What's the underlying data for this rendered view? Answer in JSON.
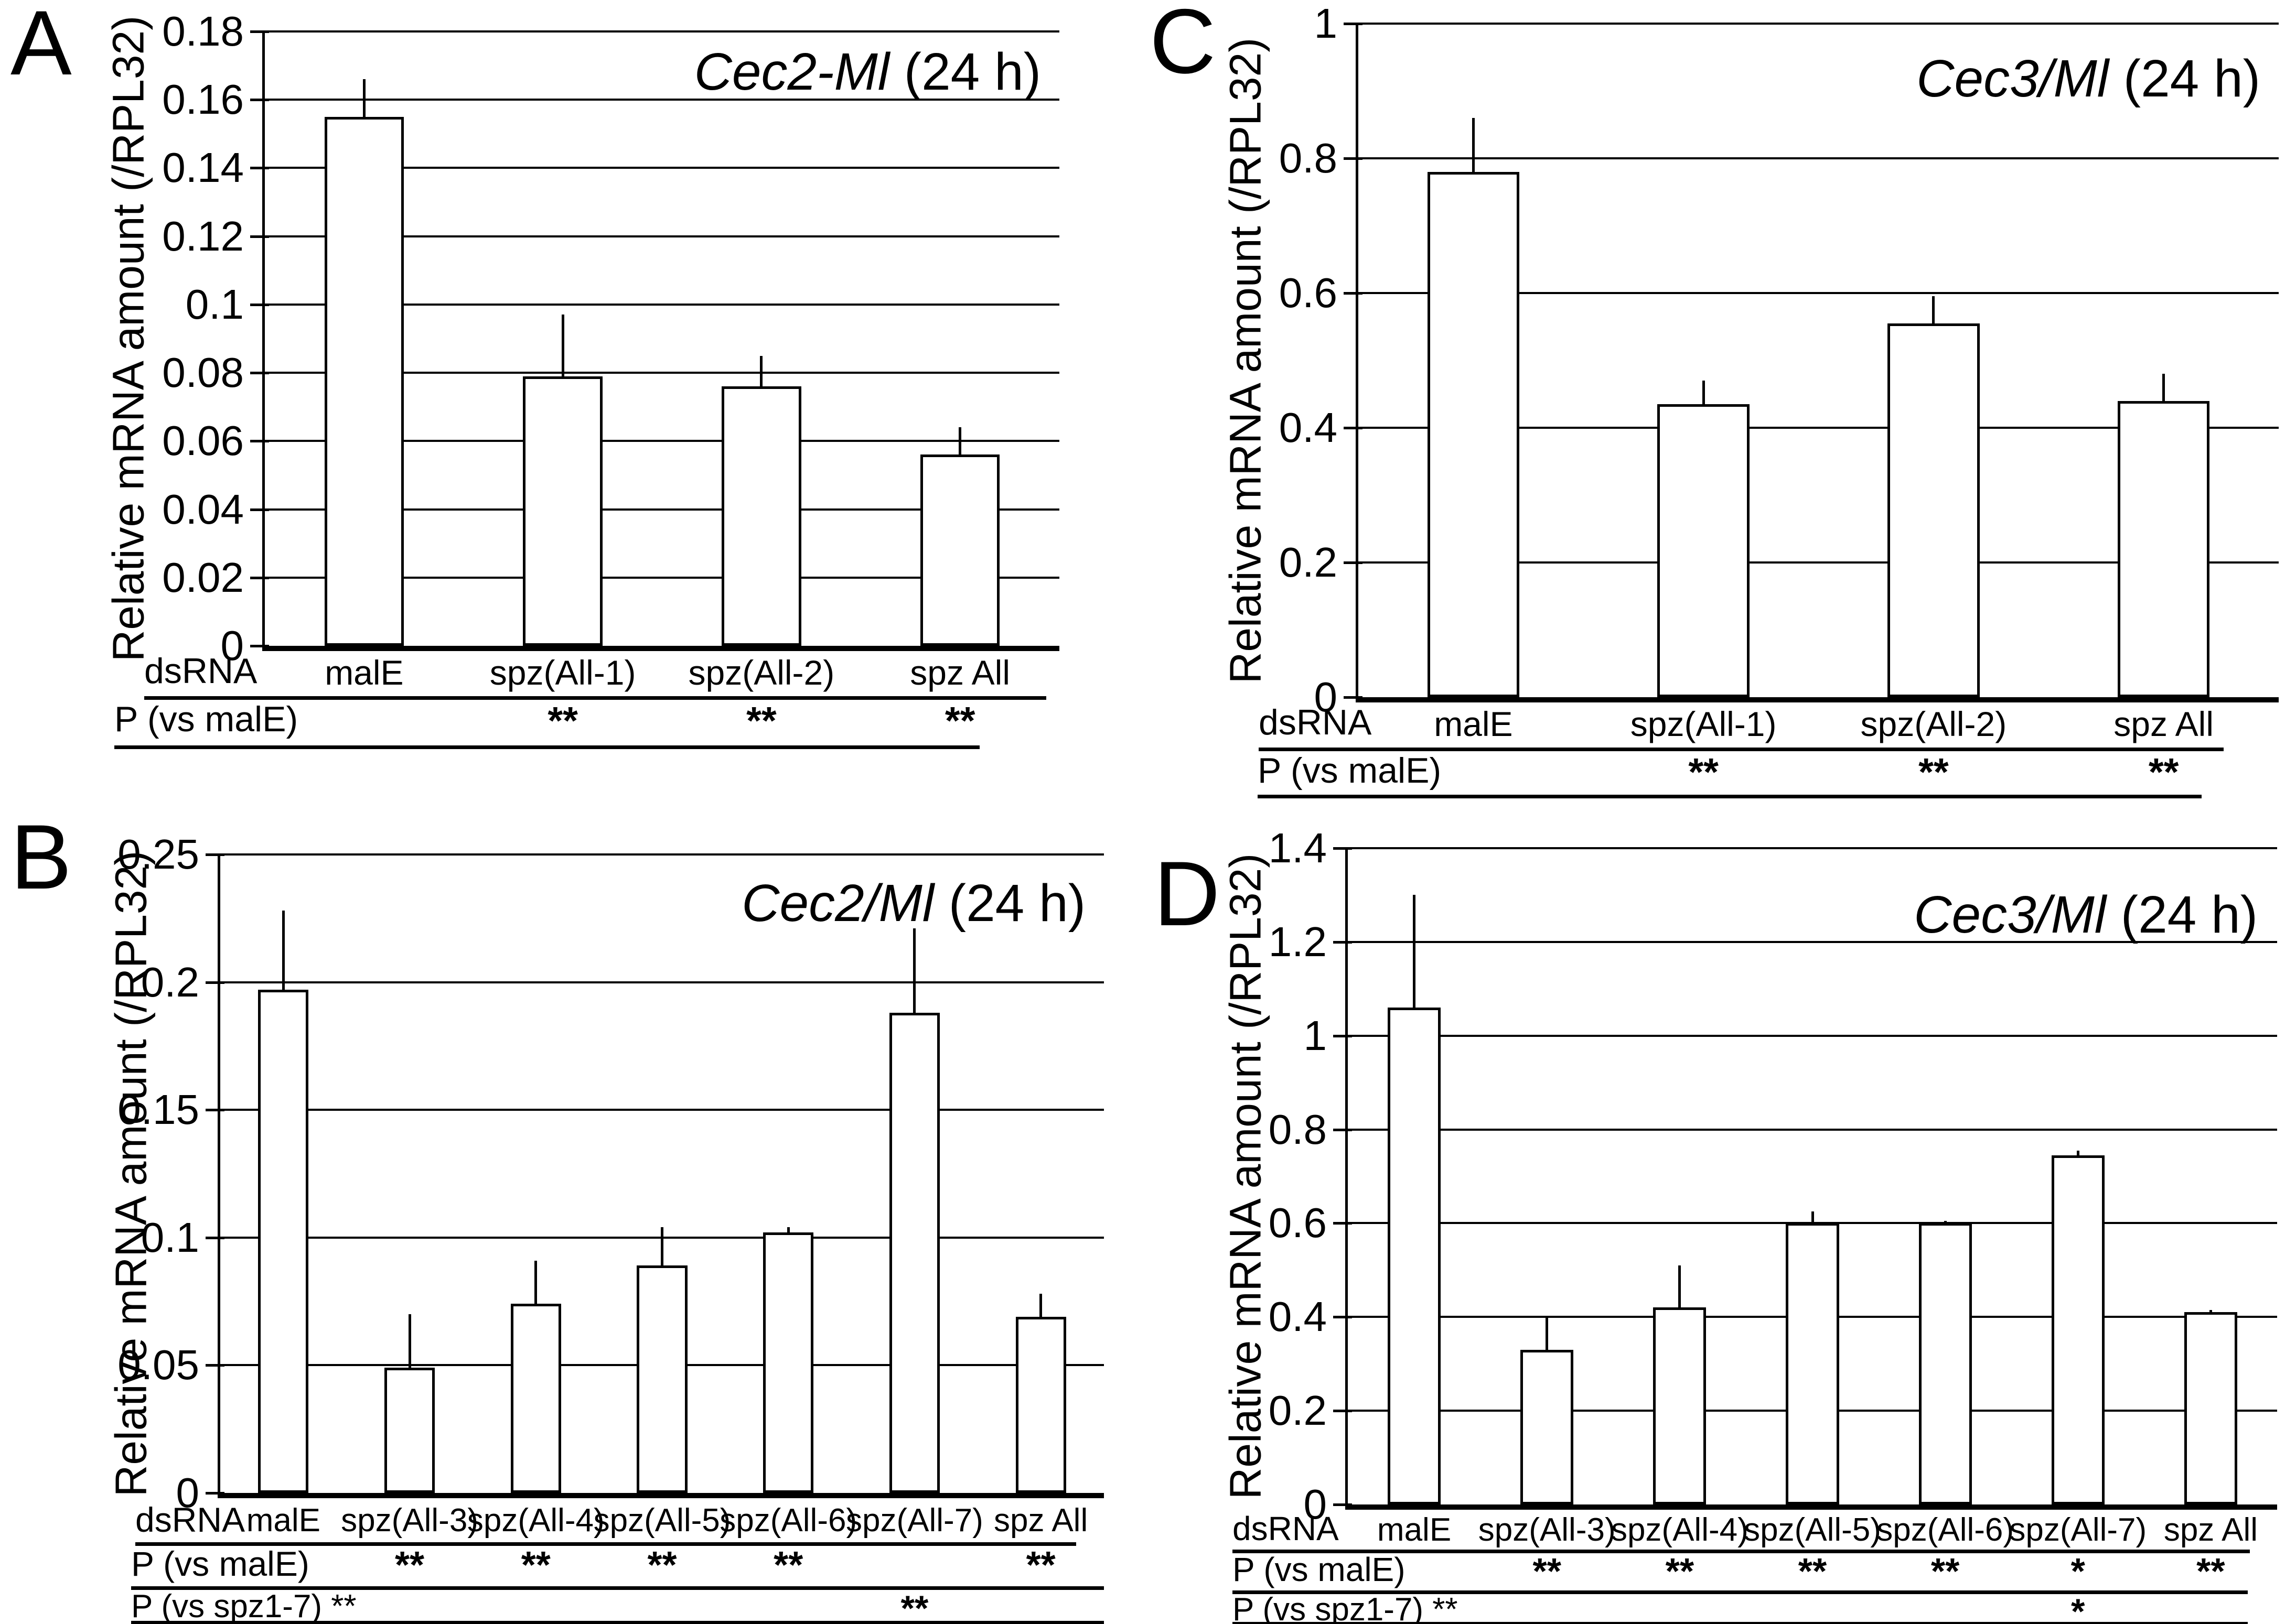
{
  "figure": {
    "background": "#ffffff",
    "ink_color": "#000000",
    "y_axis_label": "Relative mRNA amount (/RPL32)"
  },
  "chart_data": [
    {
      "type": "bar",
      "panel_letter": "A",
      "title_italic": "Cec2-Ml",
      "title_suffix": " (24 h)",
      "ylabel": "Relative mRNA amount (/RPL32)",
      "ylim": [
        0,
        0.18
      ],
      "ytick_step": 0.02,
      "ytick_labels": [
        "0.18",
        "0.16",
        "0.14",
        "0.12",
        "0.1",
        "0.08",
        "0.06",
        "0.04",
        "0.02",
        "0"
      ],
      "grid": "horizontal",
      "legend": "none",
      "bar_fill": "#ffffff",
      "categories": [
        "malE",
        "spz(All-1)",
        "spz(All-2)",
        "spz All"
      ],
      "values": [
        0.155,
        0.079,
        0.076,
        0.056
      ],
      "error_up": [
        0.011,
        0.018,
        0.009,
        0.008
      ],
      "rows": [
        {
          "label": "dsRNA",
          "type": "categories"
        },
        {
          "label": "P (vs malE)",
          "marks": [
            "",
            "**",
            "**",
            "**"
          ]
        }
      ]
    },
    {
      "type": "bar",
      "panel_letter": "B",
      "title_italic": "Cec2/Ml",
      "title_suffix": " (24 h)",
      "ylabel": "Relative mRNA amount (/RPL32)",
      "ylim": [
        0,
        0.25
      ],
      "ytick_step": 0.05,
      "ytick_labels": [
        "0.25",
        "0.2",
        "0.15",
        "0.1",
        "0.05",
        "0"
      ],
      "grid": "horizontal",
      "legend": "none",
      "bar_fill": "#ffffff",
      "categories": [
        "malE",
        "spz(All-3)",
        "spz(All-4)",
        "spz(All-5)",
        "spz(All-6)",
        "spz(All-7)",
        "spz All"
      ],
      "values": [
        0.197,
        0.049,
        0.074,
        0.089,
        0.102,
        0.188,
        0.069
      ],
      "error_up": [
        0.031,
        0.021,
        0.017,
        0.015,
        0.002,
        0.033,
        0.009
      ],
      "rows": [
        {
          "label": "dsRNA",
          "type": "categories"
        },
        {
          "label": "P (vs malE)",
          "marks": [
            "",
            "**",
            "**",
            "**",
            "**",
            "",
            "**"
          ]
        },
        {
          "label": "P (vs spz1-7) **",
          "marks": [
            "",
            "",
            "",
            "",
            "",
            "**",
            ""
          ]
        }
      ]
    },
    {
      "type": "bar",
      "panel_letter": "C",
      "title_italic": "Cec3/Ml",
      "title_suffix": " (24 h)",
      "ylabel": "Relative mRNA amount (/RPL32)",
      "ylim": [
        0,
        1
      ],
      "ytick_step": 0.2,
      "ytick_labels": [
        "1",
        "0.8",
        "0.6",
        "0.4",
        "0.2",
        "0"
      ],
      "grid": "horizontal",
      "legend": "none",
      "bar_fill": "#ffffff",
      "categories": [
        "malE",
        "spz(All-1)",
        "spz(All-2)",
        "spz All"
      ],
      "values": [
        0.78,
        0.435,
        0.555,
        0.44
      ],
      "error_up": [
        0.08,
        0.035,
        0.04,
        0.04
      ],
      "rows": [
        {
          "label": "dsRNA",
          "type": "categories"
        },
        {
          "label": "P (vs malE)",
          "marks": [
            "",
            "**",
            "**",
            "**"
          ]
        }
      ]
    },
    {
      "type": "bar",
      "panel_letter": "D",
      "title_italic": "Cec3/Ml",
      "title_suffix": " (24 h)",
      "ylabel": "Relative mRNA amount (/RPL32)",
      "ylim": [
        0,
        1.4
      ],
      "ytick_step": 0.2,
      "ytick_labels": [
        "1.4",
        "1.2",
        "1",
        "0.8",
        "0.6",
        "0.4",
        "0.2",
        "0"
      ],
      "grid": "horizontal",
      "legend": "none",
      "bar_fill": "#ffffff",
      "categories": [
        "malE",
        "spz(All-3)",
        "spz(All-4)",
        "spz(All-5)",
        "spz(All-6)",
        "spz(All-7)",
        "spz All"
      ],
      "values": [
        1.06,
        0.33,
        0.42,
        0.6,
        0.6,
        0.745,
        0.41
      ],
      "error_up": [
        0.24,
        0.07,
        0.09,
        0.025,
        0.005,
        0.01,
        0.005
      ],
      "rows": [
        {
          "label": "dsRNA",
          "type": "categories"
        },
        {
          "label": "P (vs malE)",
          "marks": [
            "",
            "**",
            "**",
            "**",
            "**",
            "*",
            "**"
          ]
        },
        {
          "label": "P (vs spz1-7) **",
          "marks": [
            "",
            "",
            "",
            "",
            "",
            "*",
            ""
          ]
        }
      ]
    }
  ]
}
